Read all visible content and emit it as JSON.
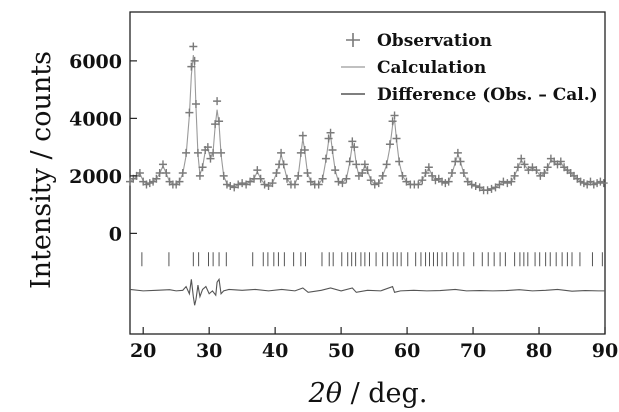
{
  "chart_data": {
    "type": "line",
    "title": "",
    "xlabel_symbol": "2θ",
    "xlabel_unit": " / deg.",
    "ylabel": "Intensity / counts",
    "xlim": [
      18,
      90
    ],
    "ylim": [
      -3500,
      7700
    ],
    "grid": false,
    "legend_position": "top-right",
    "x_ticks": [
      20,
      30,
      40,
      50,
      60,
      70,
      80,
      90
    ],
    "y_ticks": [
      0,
      2000,
      4000,
      6000
    ],
    "series": [
      {
        "name": "Observation",
        "marker": "+",
        "color": "#7a7a7a",
        "x": [
          18.0,
          18.5,
          19.0,
          19.5,
          20.0,
          20.5,
          21.0,
          21.5,
          22.0,
          22.5,
          23.0,
          23.5,
          24.0,
          24.5,
          25.0,
          25.5,
          26.0,
          26.5,
          27.0,
          27.3,
          27.6,
          27.8,
          28.0,
          28.3,
          28.6,
          29.0,
          29.4,
          29.8,
          30.2,
          30.6,
          30.9,
          31.2,
          31.5,
          31.8,
          32.2,
          32.7,
          33.2,
          33.8,
          34.4,
          35.0,
          35.6,
          36.2,
          36.8,
          37.3,
          37.8,
          38.4,
          39.0,
          39.6,
          40.2,
          40.6,
          40.9,
          41.3,
          41.8,
          42.4,
          43.0,
          43.5,
          43.9,
          44.2,
          44.5,
          44.9,
          45.4,
          46.0,
          46.6,
          47.2,
          47.7,
          48.1,
          48.4,
          48.7,
          49.1,
          49.6,
          50.2,
          50.8,
          51.3,
          51.7,
          52.0,
          52.3,
          52.7,
          53.2,
          53.6,
          54.0,
          54.5,
          55.1,
          55.7,
          56.3,
          56.9,
          57.4,
          57.8,
          58.1,
          58.4,
          58.8,
          59.3,
          59.9,
          60.5,
          61.1,
          61.7,
          62.3,
          62.8,
          63.3,
          63.8,
          64.3,
          64.8,
          65.3,
          65.8,
          66.3,
          66.8,
          67.3,
          67.7,
          68.1,
          68.6,
          69.2,
          69.8,
          70.4,
          71.0,
          71.6,
          72.2,
          72.8,
          73.4,
          74.0,
          74.6,
          75.2,
          75.8,
          76.3,
          76.8,
          77.3,
          77.8,
          78.4,
          79.0,
          79.6,
          80.2,
          80.8,
          81.3,
          81.8,
          82.3,
          82.8,
          83.3,
          83.8,
          84.3,
          84.8,
          85.3,
          85.8,
          86.3,
          86.8,
          87.3,
          87.8,
          88.3,
          88.8,
          89.3,
          89.8
        ],
        "y": [
          1800,
          1900,
          2000,
          2100,
          1800,
          1700,
          1750,
          1800,
          1900,
          2100,
          2400,
          2100,
          1800,
          1700,
          1700,
          1800,
          2100,
          2800,
          4200,
          5800,
          6500,
          6000,
          4500,
          2800,
          2000,
          2300,
          2900,
          3000,
          2600,
          2800,
          3800,
          4600,
          3900,
          2800,
          2000,
          1700,
          1650,
          1600,
          1700,
          1750,
          1700,
          1800,
          1900,
          2200,
          1900,
          1700,
          1650,
          1750,
          2100,
          2400,
          2800,
          2400,
          1900,
          1700,
          1700,
          2000,
          2800,
          3400,
          2900,
          2100,
          1800,
          1700,
          1700,
          1900,
          2600,
          3300,
          3500,
          2900,
          2200,
          1800,
          1750,
          1900,
          2500,
          3200,
          3000,
          2400,
          2000,
          2100,
          2400,
          2200,
          1850,
          1700,
          1750,
          2000,
          2400,
          3100,
          3900,
          4100,
          3300,
          2500,
          2000,
          1800,
          1700,
          1700,
          1700,
          1850,
          2100,
          2300,
          2000,
          1850,
          1900,
          1800,
          1750,
          1800,
          2100,
          2500,
          2800,
          2500,
          2100,
          1800,
          1700,
          1650,
          1600,
          1500,
          1500,
          1550,
          1600,
          1700,
          1800,
          1750,
          1800,
          2000,
          2300,
          2600,
          2400,
          2200,
          2300,
          2200,
          2000,
          2100,
          2300,
          2600,
          2500,
          2400,
          2500,
          2300,
          2200,
          2100,
          2000,
          1900,
          1800,
          1750,
          1700,
          1800,
          1700,
          1750,
          1800,
          1750
        ]
      },
      {
        "name": "Calculation",
        "color": "#9a9a9a",
        "x": [
          18.0,
          18.5,
          19.0,
          19.5,
          20.0,
          20.5,
          21.0,
          21.5,
          22.0,
          22.5,
          23.0,
          23.5,
          24.0,
          24.5,
          25.0,
          25.5,
          26.0,
          26.5,
          27.0,
          27.3,
          27.6,
          27.8,
          28.0,
          28.3,
          28.6,
          29.0,
          29.4,
          29.8,
          30.2,
          30.6,
          30.9,
          31.2,
          31.5,
          31.8,
          32.2,
          32.7,
          33.2,
          33.8,
          34.4,
          35.0,
          35.6,
          36.2,
          36.8,
          37.3,
          37.8,
          38.4,
          39.0,
          39.6,
          40.2,
          40.6,
          40.9,
          41.3,
          41.8,
          42.4,
          43.0,
          43.5,
          43.9,
          44.2,
          44.5,
          44.9,
          45.4,
          46.0,
          46.6,
          47.2,
          47.7,
          48.1,
          48.4,
          48.7,
          49.1,
          49.6,
          50.2,
          50.8,
          51.3,
          51.7,
          52.0,
          52.3,
          52.7,
          53.2,
          53.6,
          54.0,
          54.5,
          55.1,
          55.7,
          56.3,
          56.9,
          57.4,
          57.8,
          58.1,
          58.4,
          58.8,
          59.3,
          59.9,
          60.5,
          61.1,
          61.7,
          62.3,
          62.8,
          63.3,
          63.8,
          64.3,
          64.8,
          65.3,
          65.8,
          66.3,
          66.8,
          67.3,
          67.7,
          68.1,
          68.6,
          69.2,
          69.8,
          70.4,
          71.0,
          71.6,
          72.2,
          72.8,
          73.4,
          74.0,
          74.6,
          75.2,
          75.8,
          76.3,
          76.8,
          77.3,
          77.8,
          78.4,
          79.0,
          79.6,
          80.2,
          80.8,
          81.3,
          81.8,
          82.3,
          82.8,
          83.3,
          83.8,
          84.3,
          84.8,
          85.3,
          85.8,
          86.3,
          86.8,
          87.3,
          87.8,
          88.3,
          88.8,
          89.3,
          89.8
        ],
        "y": [
          1800,
          1880,
          1980,
          2080,
          1820,
          1720,
          1760,
          1810,
          1900,
          2080,
          2350,
          2080,
          1800,
          1710,
          1710,
          1810,
          2080,
          2700,
          4100,
          5500,
          6200,
          5800,
          4400,
          2750,
          2050,
          2300,
          2850,
          2950,
          2600,
          2850,
          3700,
          4300,
          3800,
          2750,
          2000,
          1720,
          1660,
          1610,
          1700,
          1750,
          1710,
          1800,
          1900,
          2150,
          1900,
          1710,
          1660,
          1750,
          2080,
          2380,
          2750,
          2380,
          1900,
          1710,
          1710,
          2000,
          2750,
          3300,
          2850,
          2100,
          1800,
          1710,
          1710,
          1900,
          2550,
          3200,
          3400,
          2850,
          2200,
          1800,
          1760,
          1900,
          2450,
          3100,
          2950,
          2400,
          2000,
          2100,
          2380,
          2180,
          1850,
          1710,
          1760,
          2000,
          2380,
          3000,
          3750,
          3950,
          3250,
          2480,
          2000,
          1800,
          1710,
          1700,
          1710,
          1850,
          2080,
          2280,
          2000,
          1850,
          1900,
          1800,
          1760,
          1800,
          2080,
          2450,
          2750,
          2480,
          2080,
          1800,
          1710,
          1660,
          1600,
          1520,
          1510,
          1550,
          1610,
          1700,
          1800,
          1760,
          1800,
          2000,
          2280,
          2550,
          2380,
          2200,
          2280,
          2180,
          2000,
          2080,
          2280,
          2550,
          2480,
          2380,
          2480,
          2280,
          2200,
          2100,
          2000,
          1900,
          1800,
          1760,
          1710,
          1800,
          1710,
          1750,
          1800,
          1760
        ]
      },
      {
        "name": "Difference (Obs. – Cal.)",
        "color": "#555555",
        "x": [
          18.0,
          20.0,
          22.0,
          24.0,
          25.0,
          26.0,
          26.5,
          27.0,
          27.3,
          27.6,
          27.8,
          28.0,
          28.3,
          28.6,
          29.0,
          29.5,
          30.0,
          30.5,
          31.0,
          31.2,
          31.5,
          31.8,
          32.2,
          33.0,
          35.0,
          37.0,
          39.0,
          41.0,
          43.0,
          44.2,
          45.0,
          47.0,
          48.4,
          50.0,
          51.7,
          52.3,
          54.0,
          56.0,
          57.8,
          58.1,
          59.0,
          61.0,
          63.0,
          65.0,
          67.3,
          69.0,
          71.0,
          73.0,
          75.0,
          77.0,
          79.0,
          81.0,
          82.8,
          85.0,
          87.0,
          89.0,
          90.0
        ],
        "y": [
          -1950,
          -2000,
          -1980,
          -1960,
          -2000,
          -1980,
          -1850,
          -2100,
          -1600,
          -2200,
          -2500,
          -2300,
          -1800,
          -2200,
          -1950,
          -1850,
          -2100,
          -2000,
          -2150,
          -1700,
          -1600,
          -2100,
          -2000,
          -1950,
          -1980,
          -1950,
          -2000,
          -1950,
          -2000,
          -1900,
          -2050,
          -1980,
          -1900,
          -2000,
          -1900,
          -2050,
          -1980,
          -2000,
          -1850,
          -2050,
          -2000,
          -1980,
          -2000,
          -1990,
          -1950,
          -2000,
          -1990,
          -2000,
          -1990,
          -1960,
          -2000,
          -1980,
          -1950,
          -2010,
          -1990,
          -2000,
          -2000
        ]
      }
    ],
    "reflection_markers": [
      19.8,
      23.9,
      27.6,
      28.4,
      29.9,
      30.6,
      31.5,
      32.6,
      36.6,
      38.2,
      38.9,
      39.8,
      40.5,
      41.4,
      42.8,
      43.9,
      44.6,
      47.1,
      48.2,
      48.8,
      50.1,
      51.0,
      51.6,
      52.2,
      53.0,
      53.6,
      54.3,
      55.3,
      56.3,
      57.0,
      57.9,
      58.5,
      59.1,
      60.1,
      61.3,
      62.1,
      62.8,
      63.4,
      64.0,
      64.6,
      65.3,
      66.0,
      67.0,
      67.7,
      68.6,
      70.1,
      71.4,
      72.3,
      73.2,
      74.1,
      74.9,
      76.3,
      77.1,
      77.7,
      78.3,
      79.4,
      80.1,
      81.0,
      81.7,
      82.6,
      83.5,
      84.3,
      85.0,
      86.2,
      88.1,
      89.6
    ],
    "reflection_marker_level": -900
  }
}
